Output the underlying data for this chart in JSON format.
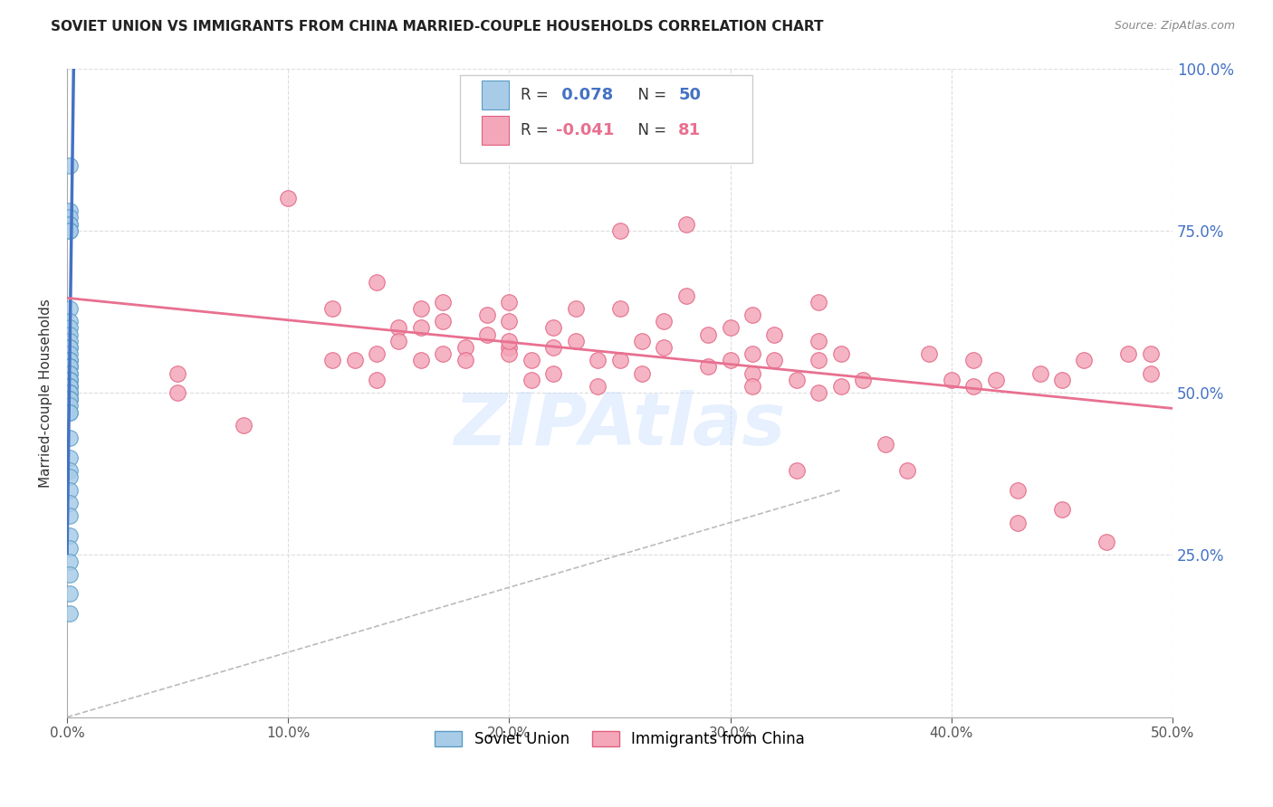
{
  "title": "SOVIET UNION VS IMMIGRANTS FROM CHINA MARRIED-COUPLE HOUSEHOLDS CORRELATION CHART",
  "source": "Source: ZipAtlas.com",
  "ylabel_left": "Married-couple Households",
  "x_ticks": [
    0.0,
    0.1,
    0.2,
    0.3,
    0.4,
    0.5
  ],
  "x_tick_labels": [
    "0.0%",
    "10.0%",
    "20.0%",
    "30.0%",
    "40.0%",
    "50.0%"
  ],
  "y_ticks_right": [
    0.0,
    0.25,
    0.5,
    0.75,
    1.0
  ],
  "y_tick_labels_right": [
    "",
    "25.0%",
    "50.0%",
    "75.0%",
    "100.0%"
  ],
  "xlim": [
    0.0,
    0.5
  ],
  "ylim": [
    0.0,
    1.0
  ],
  "soviet_union_x": [
    0.001,
    0.001,
    0.001,
    0.001,
    0.001,
    0.001,
    0.001,
    0.001,
    0.001,
    0.001,
    0.001,
    0.001,
    0.001,
    0.001,
    0.001,
    0.001,
    0.001,
    0.001,
    0.001,
    0.001,
    0.001,
    0.001,
    0.001,
    0.001,
    0.001,
    0.001,
    0.001,
    0.001,
    0.001,
    0.001,
    0.001,
    0.001,
    0.001,
    0.001,
    0.001,
    0.001,
    0.001,
    0.001,
    0.001,
    0.001,
    0.001,
    0.001,
    0.001,
    0.001,
    0.001,
    0.001,
    0.001,
    0.001,
    0.001,
    0.001
  ],
  "soviet_union_y": [
    0.85,
    0.78,
    0.77,
    0.76,
    0.76,
    0.75,
    0.75,
    0.63,
    0.61,
    0.6,
    0.59,
    0.58,
    0.57,
    0.57,
    0.56,
    0.55,
    0.55,
    0.54,
    0.54,
    0.54,
    0.53,
    0.53,
    0.52,
    0.52,
    0.52,
    0.51,
    0.51,
    0.51,
    0.5,
    0.5,
    0.5,
    0.49,
    0.49,
    0.49,
    0.48,
    0.47,
    0.47,
    0.43,
    0.4,
    0.38,
    0.37,
    0.35,
    0.33,
    0.31,
    0.28,
    0.26,
    0.24,
    0.22,
    0.19,
    0.16
  ],
  "china_x": [
    0.05,
    0.05,
    0.08,
    0.1,
    0.12,
    0.12,
    0.13,
    0.14,
    0.14,
    0.14,
    0.15,
    0.15,
    0.16,
    0.16,
    0.16,
    0.17,
    0.17,
    0.17,
    0.18,
    0.18,
    0.19,
    0.19,
    0.2,
    0.2,
    0.2,
    0.2,
    0.2,
    0.21,
    0.21,
    0.22,
    0.22,
    0.22,
    0.23,
    0.23,
    0.24,
    0.24,
    0.25,
    0.25,
    0.25,
    0.26,
    0.26,
    0.27,
    0.27,
    0.28,
    0.28,
    0.29,
    0.29,
    0.3,
    0.3,
    0.31,
    0.31,
    0.31,
    0.31,
    0.32,
    0.32,
    0.33,
    0.33,
    0.34,
    0.34,
    0.34,
    0.34,
    0.35,
    0.35,
    0.36,
    0.37,
    0.38,
    0.39,
    0.4,
    0.41,
    0.41,
    0.42,
    0.43,
    0.43,
    0.44,
    0.45,
    0.45,
    0.46,
    0.47,
    0.48,
    0.49,
    0.49
  ],
  "china_y": [
    0.53,
    0.5,
    0.45,
    0.8,
    0.63,
    0.55,
    0.55,
    0.56,
    0.52,
    0.67,
    0.6,
    0.58,
    0.55,
    0.63,
    0.6,
    0.56,
    0.64,
    0.61,
    0.57,
    0.55,
    0.62,
    0.59,
    0.57,
    0.56,
    0.64,
    0.61,
    0.58,
    0.55,
    0.52,
    0.6,
    0.57,
    0.53,
    0.63,
    0.58,
    0.55,
    0.51,
    0.75,
    0.63,
    0.55,
    0.58,
    0.53,
    0.61,
    0.57,
    0.76,
    0.65,
    0.59,
    0.54,
    0.6,
    0.55,
    0.53,
    0.62,
    0.56,
    0.51,
    0.59,
    0.55,
    0.38,
    0.52,
    0.58,
    0.64,
    0.55,
    0.5,
    0.56,
    0.51,
    0.52,
    0.42,
    0.38,
    0.56,
    0.52,
    0.51,
    0.55,
    0.52,
    0.3,
    0.35,
    0.53,
    0.32,
    0.52,
    0.55,
    0.27,
    0.56,
    0.56,
    0.53
  ],
  "soviet_R": 0.078,
  "soviet_N": 50,
  "china_R": -0.041,
  "china_N": 81,
  "soviet_color": "#A8CCE8",
  "soviet_edge_color": "#5A9CC5",
  "china_color": "#F4A7B9",
  "china_edge_color": "#E06080",
  "soviet_line_color": "#4472C4",
  "china_line_color": "#E87090",
  "diag_line_color": "#BBBBBB",
  "background_color": "#FFFFFF",
  "title_fontsize": 11,
  "legend_soviet_color": "#4472C4",
  "legend_china_color": "#E87090"
}
